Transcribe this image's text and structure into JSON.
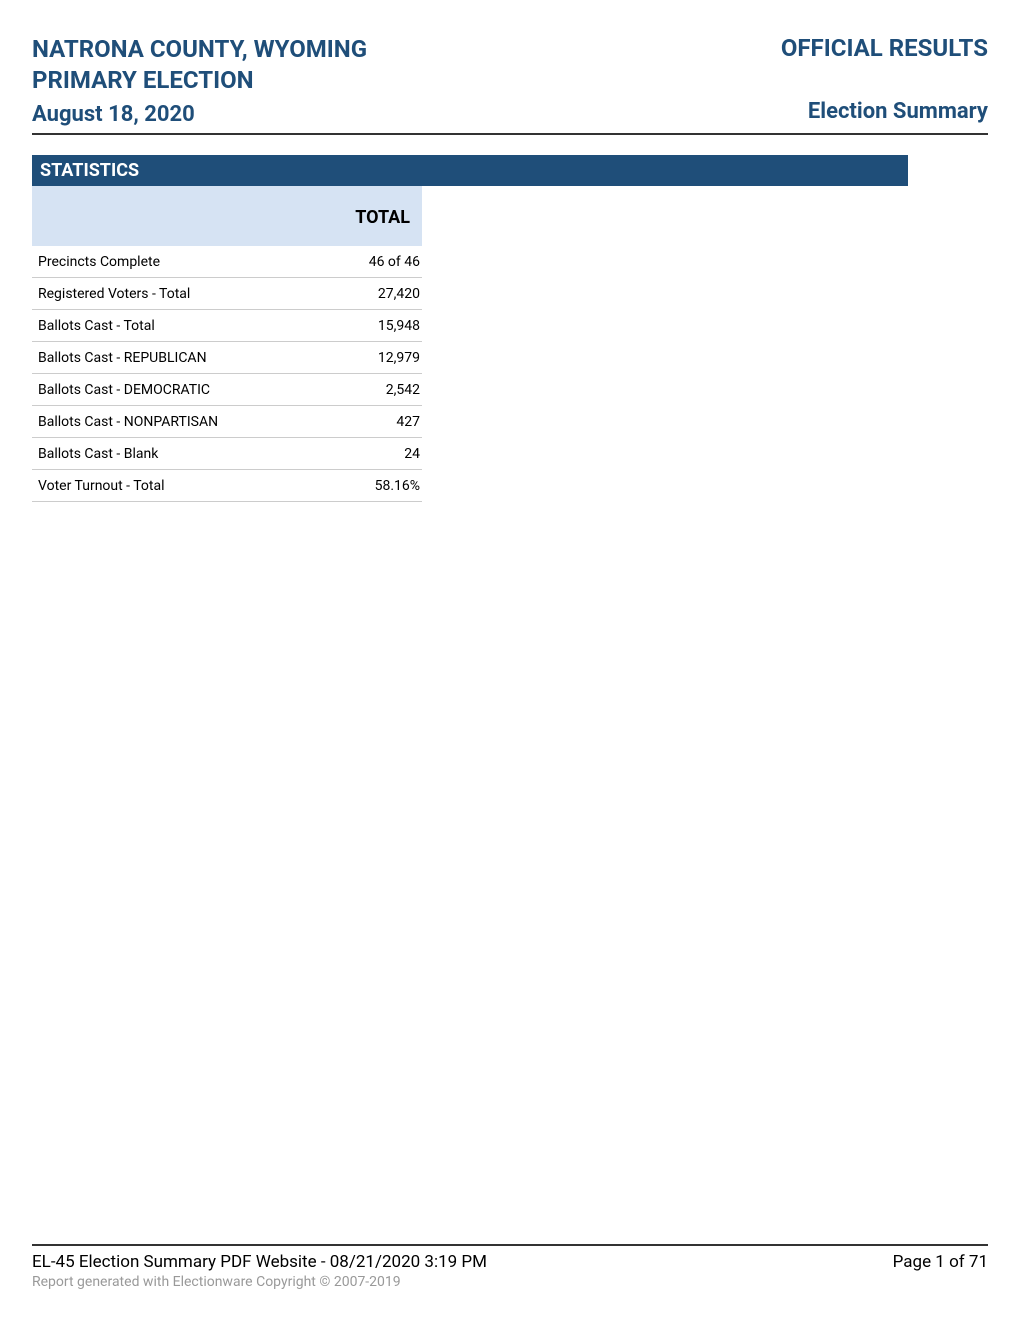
{
  "colors": {
    "brand_blue": "#1f4e79",
    "header_cell_bg": "#d6e3f3",
    "divider": "#333333",
    "row_border": "#cccccc",
    "copyright_text": "#999999",
    "background": "#ffffff"
  },
  "header": {
    "title_line1": "NATRONA COUNTY, WYOMING",
    "title_line2": "PRIMARY ELECTION",
    "date": "August 18, 2020",
    "official_results": "OFFICIAL RESULTS",
    "election_summary": "Election Summary"
  },
  "section": {
    "title": "STATISTICS"
  },
  "table": {
    "columns": [
      "",
      "TOTAL"
    ],
    "rows": [
      {
        "label": "Precincts Complete",
        "value": "46 of 46"
      },
      {
        "label": "Registered Voters - Total",
        "value": "27,420"
      },
      {
        "label": "Ballots Cast - Total",
        "value": "15,948"
      },
      {
        "label": "Ballots Cast - REPUBLICAN",
        "value": "12,979"
      },
      {
        "label": "Ballots Cast - DEMOCRATIC",
        "value": "2,542"
      },
      {
        "label": "Ballots Cast - NONPARTISAN",
        "value": "427"
      },
      {
        "label": "Ballots Cast - Blank",
        "value": "24"
      },
      {
        "label": "Voter Turnout - Total",
        "value": "58.16%"
      }
    ]
  },
  "footer": {
    "report_info": "EL-45 Election Summary PDF Website - 08/21/2020    3:19 PM",
    "page_info": "Page 1 of 71",
    "copyright": "Report generated with Electionware Copyright © 2007-2019"
  }
}
